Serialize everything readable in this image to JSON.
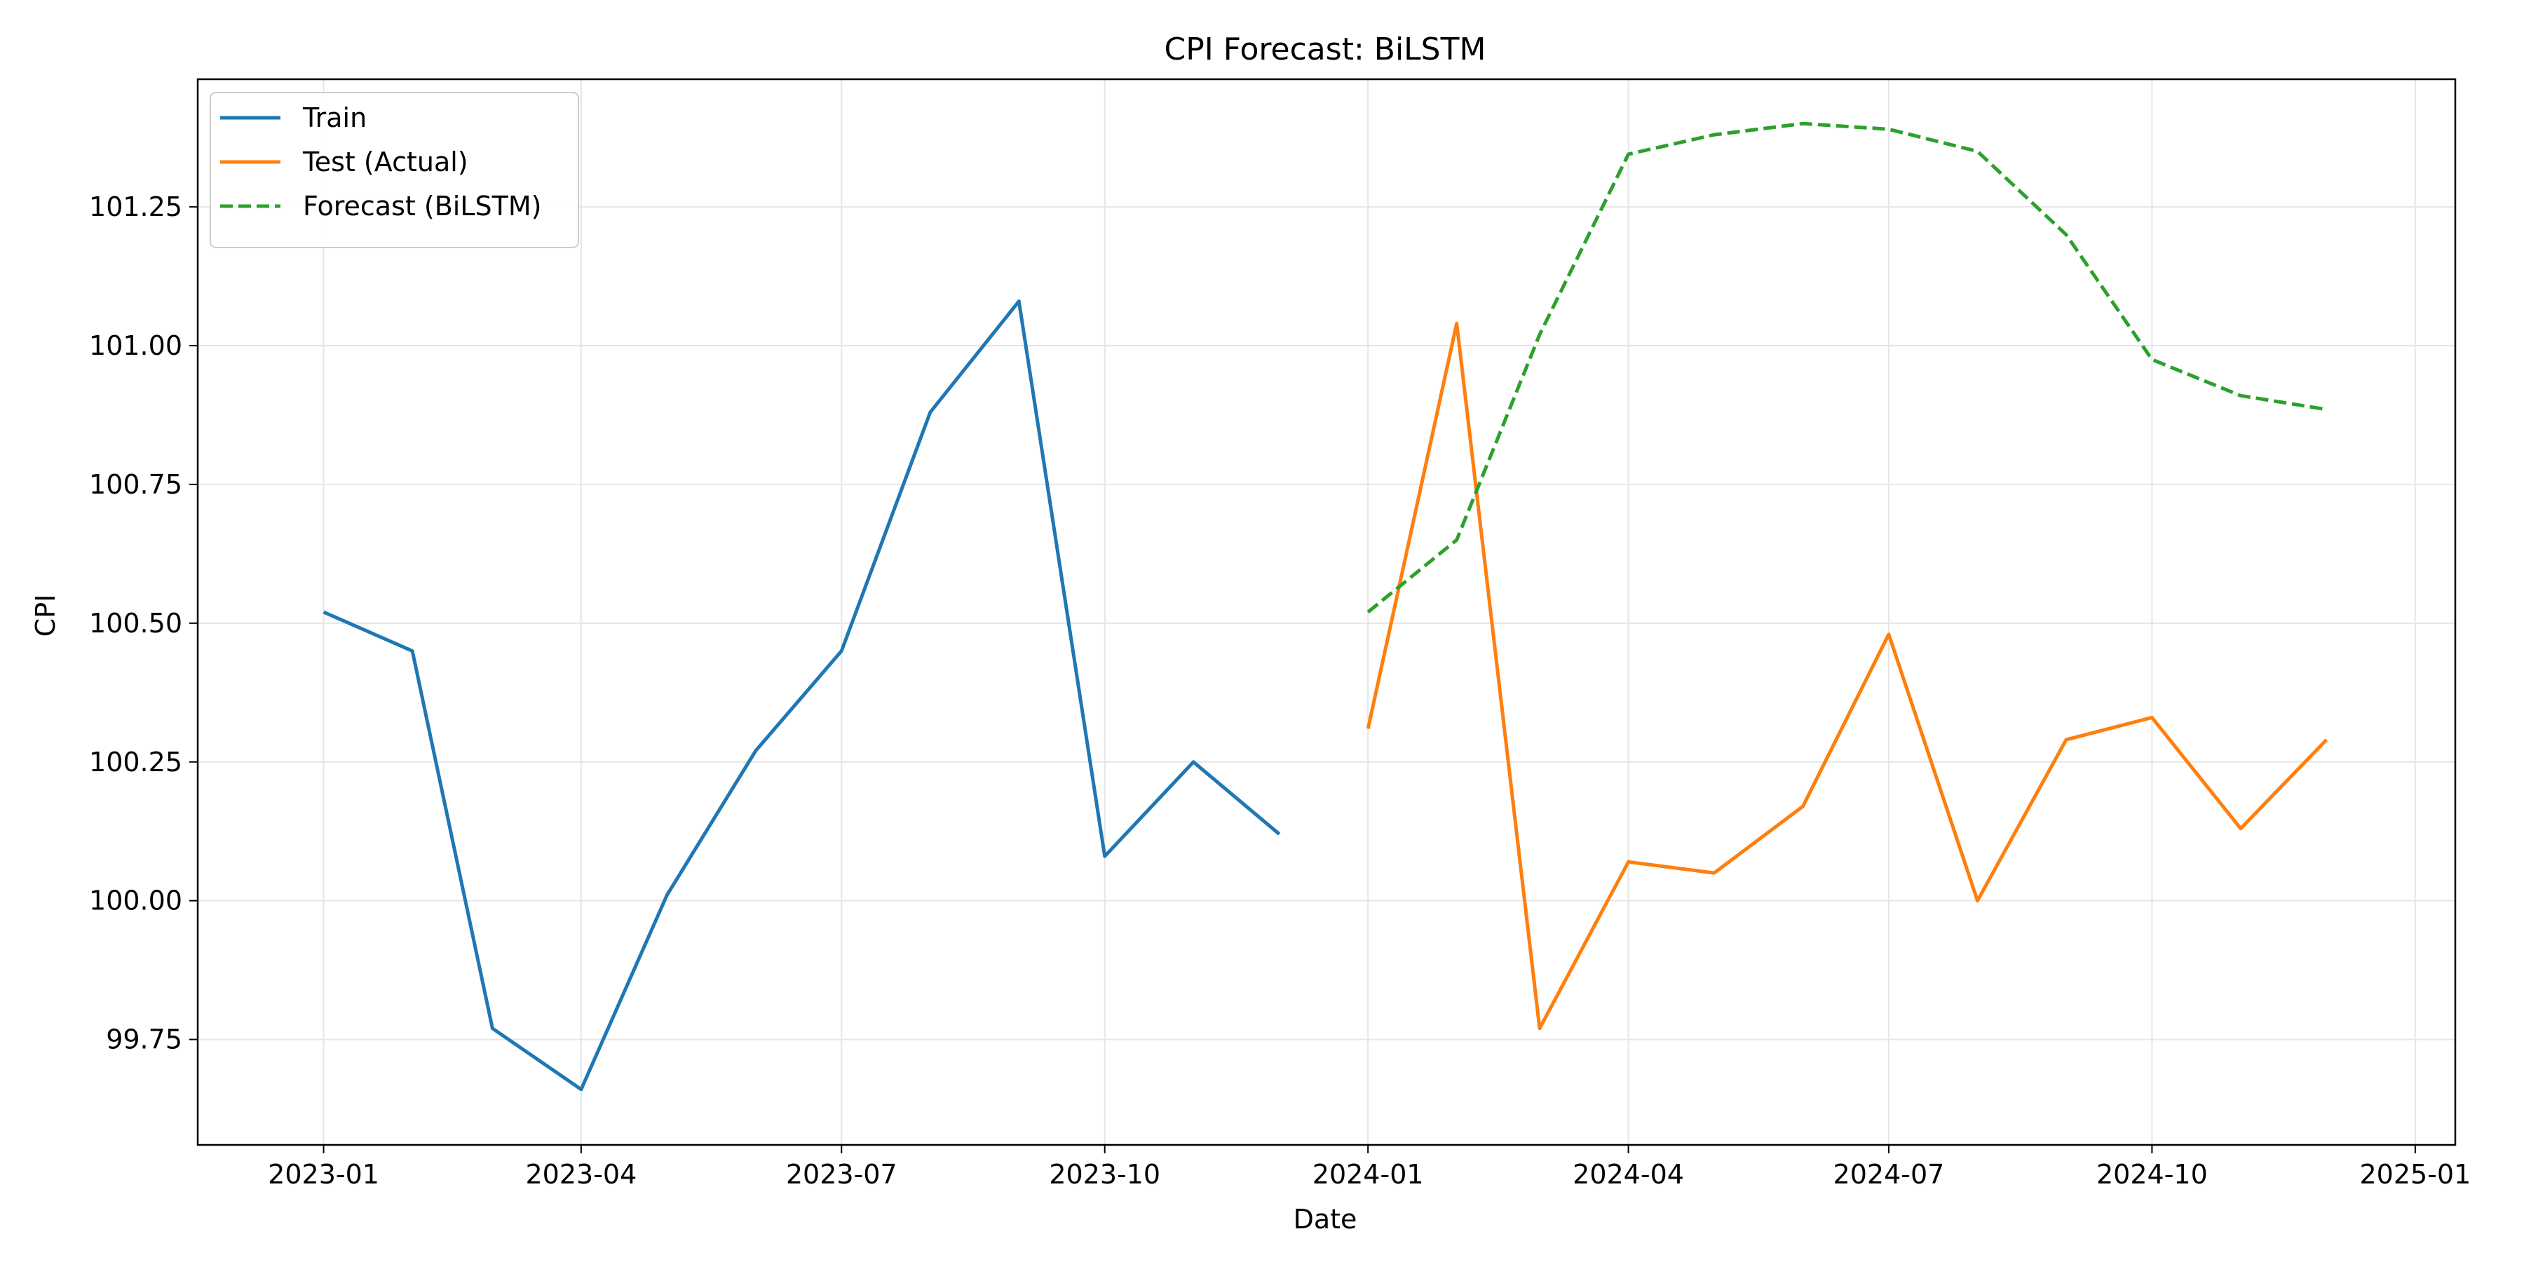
{
  "chart_data": {
    "type": "line",
    "title": "CPI Forecast: BiLSTM",
    "xlabel": "Date",
    "ylabel": "CPI",
    "x_ticks": [
      "2023-01",
      "2023-04",
      "2023-07",
      "2023-10",
      "2024-01",
      "2024-04",
      "2024-07",
      "2024-10",
      "2025-01"
    ],
    "y_ticks": [
      "99.75",
      "100.00",
      "100.25",
      "100.50",
      "100.75",
      "101.00",
      "101.25"
    ],
    "xlim": [
      "2022-11-18",
      "2025-01-15"
    ],
    "ylim": [
      99.56,
      101.48
    ],
    "grid": true,
    "legend": "top-left",
    "series": [
      {
        "name": "Train",
        "color": "#1f77b4",
        "style": "solid",
        "x": [
          "2023-01-01",
          "2023-02-01",
          "2023-03-01",
          "2023-04-01",
          "2023-05-01",
          "2023-06-01",
          "2023-07-01",
          "2023-08-01",
          "2023-09-01",
          "2023-10-01",
          "2023-11-01",
          "2023-12-01"
        ],
        "y": [
          100.52,
          100.45,
          99.77,
          99.66,
          100.01,
          100.27,
          100.45,
          100.88,
          101.08,
          100.08,
          100.25,
          100.12
        ]
      },
      {
        "name": "Test (Actual)",
        "color": "#ff7f0e",
        "style": "solid",
        "x": [
          "2024-01-01",
          "2024-02-01",
          "2024-03-01",
          "2024-04-01",
          "2024-05-01",
          "2024-06-01",
          "2024-07-01",
          "2024-08-01",
          "2024-09-01",
          "2024-10-01",
          "2024-11-01",
          "2024-12-01"
        ],
        "y": [
          100.31,
          101.04,
          99.77,
          100.07,
          100.05,
          100.17,
          100.48,
          100.0,
          100.29,
          100.33,
          100.13,
          100.29
        ]
      },
      {
        "name": "Forecast (BiLSTM)",
        "color": "#2ca02c",
        "style": "dashed",
        "x": [
          "2024-01-01",
          "2024-02-01",
          "2024-03-01",
          "2024-04-01",
          "2024-05-01",
          "2024-06-01",
          "2024-07-01",
          "2024-08-01",
          "2024-09-01",
          "2024-10-01",
          "2024-11-01",
          "2024-12-01"
        ],
        "y": [
          100.52,
          100.65,
          101.02,
          101.345,
          101.38,
          101.4,
          101.39,
          101.35,
          101.2,
          100.975,
          100.91,
          100.885
        ]
      }
    ]
  }
}
